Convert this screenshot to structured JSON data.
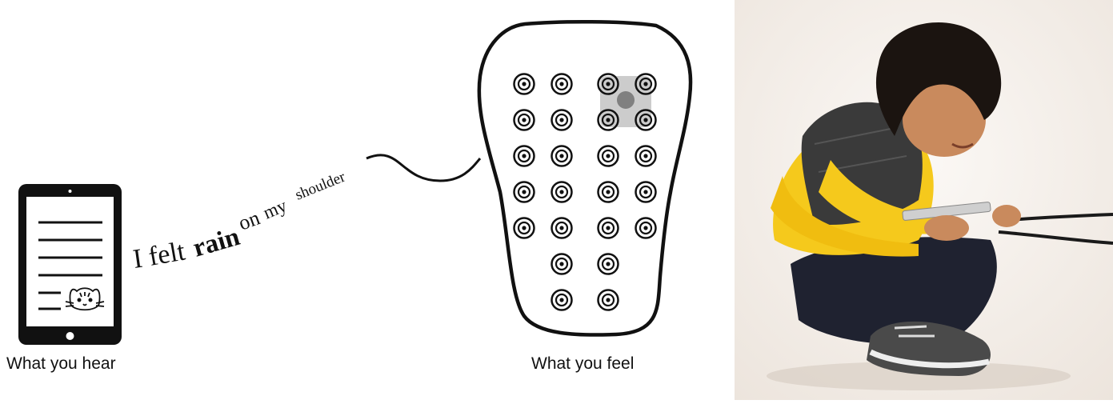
{
  "captions": {
    "hear": "What you hear",
    "feel": "What you feel"
  },
  "sentence": {
    "word1": "I",
    "word2": "felt",
    "word3": "rain",
    "word4": "on",
    "word5": "my",
    "word6": "shoulder"
  },
  "icons": {
    "tablet": "tablet-icon",
    "cat": "cat-face-icon",
    "vest": "haptic-vest-icon",
    "motor": "vibration-motor-icon"
  },
  "vest": {
    "rows": [
      4,
      4,
      4,
      4,
      4,
      2,
      2
    ],
    "active_motor": {
      "row": 1,
      "col": 3
    }
  },
  "colors": {
    "ink": "#111111",
    "highlight": "#9a9a9a",
    "shirt": "#f5c91c",
    "vest_fabric": "#3a3a3a"
  }
}
